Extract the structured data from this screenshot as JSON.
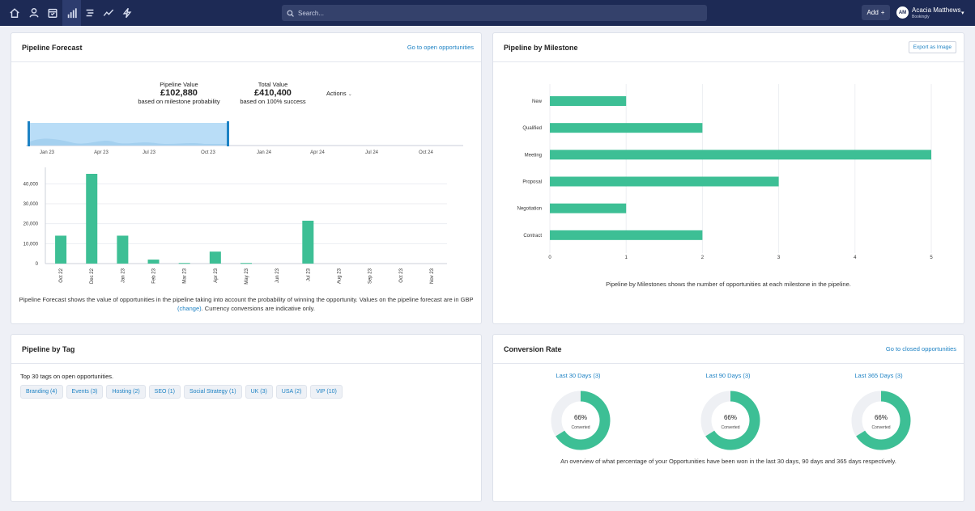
{
  "topbar": {
    "search_placeholder": "Search...",
    "add_label": "Add",
    "user_initials": "AM",
    "user_name": "Acacia Matthews",
    "user_org": "Bookingly"
  },
  "forecast": {
    "title": "Pipeline Forecast",
    "link": "Go to open opportunities",
    "pipeline_label": "Pipeline Value",
    "pipeline_value": "£102,880",
    "pipeline_sub": "based on milestone probability",
    "total_label": "Total Value",
    "total_value": "£410,400",
    "total_sub": "based on 100% success",
    "actions": "Actions",
    "desc_1": "Pipeline Forecast shows the value of opportunities in the pipeline taking into account the probability of winning the opportunity. Values on the pipeline forecast are in GBP",
    "desc_link": "(change)",
    "desc_2": ". Currency conversions are indicative only.",
    "navigator_ticks": [
      "Jan 23",
      "Apr 23",
      "Jul 23",
      "Oct 23",
      "Jan 24",
      "Apr 24",
      "Jul 24",
      "Oct 24"
    ]
  },
  "milestone": {
    "title": "Pipeline by Milestone",
    "export": "Export as Image",
    "desc": "Pipeline by Milestones shows the number of opportunities at each milestone in the pipeline."
  },
  "tags": {
    "title": "Pipeline by Tag",
    "intro": "Top 30 tags on open opportunities.",
    "items": [
      "Branding (4)",
      "Events (3)",
      "Hosting (2)",
      "SEO (1)",
      "Social Strategy (1)",
      "UK (3)",
      "USA (2)",
      "VIP (10)"
    ]
  },
  "conversion": {
    "title": "Conversion Rate",
    "link": "Go to closed opportunities",
    "desc": "An overview of what percentage of your Opportunities have been won in the last 30 days, 90 days and 365 days respectively.",
    "periods": [
      {
        "label": "Last 30 Days (3)",
        "pct": "66%",
        "sub": "Converted",
        "value": 0.66
      },
      {
        "label": "Last 90 Days (3)",
        "pct": "66%",
        "sub": "Converted",
        "value": 0.66
      },
      {
        "label": "Last 365 Days (3)",
        "pct": "66%",
        "sub": "Converted",
        "value": 0.66
      }
    ]
  },
  "colors": {
    "accent": "#3dbf95",
    "link": "#1d82c4",
    "nav": "#1d2a55"
  },
  "chart_data": [
    {
      "type": "bar",
      "categories": [
        "Oct 22",
        "Dec 22",
        "Jan 23",
        "Feb 23",
        "Mar 23",
        "Apr 23",
        "May 23",
        "Jun 23",
        "Jul 23",
        "Aug 23",
        "Sep 23",
        "Oct 23",
        "Nov 23"
      ],
      "values": [
        14000,
        45000,
        14000,
        2000,
        300,
        6000,
        300,
        0,
        21500,
        0,
        0,
        0,
        0
      ],
      "yticks": [
        "0",
        "10,000",
        "20,000",
        "30,000",
        "40,000"
      ],
      "ylim": [
        0,
        45000
      ]
    },
    {
      "type": "bar",
      "orientation": "horizontal",
      "categories": [
        "New",
        "Qualified",
        "Meeting",
        "Proposal",
        "Negotiation",
        "Contract"
      ],
      "values": [
        1,
        2,
        5,
        3,
        1,
        2
      ],
      "xticks": [
        "0",
        "1",
        "2",
        "3",
        "4",
        "5"
      ],
      "xlim": [
        0,
        5
      ]
    }
  ]
}
